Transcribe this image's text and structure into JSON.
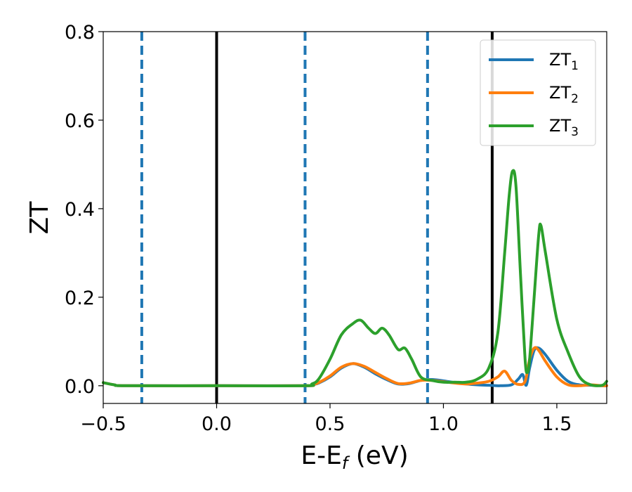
{
  "chart_data": {
    "type": "line",
    "xlabel": "E-E",
    "xlabel_sub": "f",
    "xlabel_unit": " (eV)",
    "ylabel": "ZT",
    "xlim": [
      -0.5,
      1.72
    ],
    "ylim": [
      -0.04,
      0.8
    ],
    "x_ticks": [
      -0.5,
      0.0,
      0.5,
      1.0,
      1.5
    ],
    "x_tick_labels": [
      "−0.5",
      "0.0",
      "0.5",
      "1.0",
      "1.5"
    ],
    "y_ticks": [
      0.0,
      0.2,
      0.4,
      0.6,
      0.8
    ],
    "y_tick_labels": [
      "0.0",
      "0.2",
      "0.4",
      "0.6",
      "0.8"
    ],
    "grid": false,
    "legend_position": "top-right",
    "vertical_lines": [
      {
        "x": -0.33,
        "style": "dashed",
        "color": "#1f77b4"
      },
      {
        "x": 0.0,
        "style": "solid",
        "color": "#000000"
      },
      {
        "x": 0.39,
        "style": "dashed",
        "color": "#1f77b4"
      },
      {
        "x": 0.93,
        "style": "dashed",
        "color": "#1f77b4"
      },
      {
        "x": 1.215,
        "style": "solid",
        "color": "#000000"
      }
    ],
    "series": [
      {
        "name": "ZT",
        "sub": "1",
        "color": "#1f77b4",
        "x": [
          -0.5,
          -0.45,
          -0.4,
          0.0,
          0.39,
          0.42,
          0.45,
          0.5,
          0.55,
          0.6,
          0.65,
          0.7,
          0.75,
          0.8,
          0.85,
          0.9,
          0.95,
          1.0,
          1.05,
          1.1,
          1.15,
          1.2,
          1.25,
          1.3,
          1.33,
          1.35,
          1.365,
          1.38,
          1.4,
          1.42,
          1.45,
          1.5,
          1.55,
          1.6,
          1.65,
          1.7,
          1.72
        ],
        "y": [
          0.007,
          0.002,
          0.0,
          0.0,
          0.0,
          0.002,
          0.006,
          0.02,
          0.04,
          0.05,
          0.042,
          0.027,
          0.014,
          0.004,
          0.005,
          0.012,
          0.014,
          0.011,
          0.007,
          0.004,
          0.002,
          0.001,
          0.0,
          0.002,
          0.015,
          0.025,
          0.001,
          0.04,
          0.08,
          0.085,
          0.07,
          0.035,
          0.01,
          0.002,
          0.001,
          0.0,
          0.0
        ]
      },
      {
        "name": "ZT",
        "sub": "2",
        "color": "#ff7f0e",
        "x": [
          -0.5,
          -0.45,
          -0.4,
          0.0,
          0.39,
          0.42,
          0.45,
          0.5,
          0.55,
          0.6,
          0.65,
          0.7,
          0.75,
          0.8,
          0.85,
          0.9,
          0.95,
          1.0,
          1.05,
          1.1,
          1.15,
          1.2,
          1.24,
          1.27,
          1.3,
          1.33,
          1.36,
          1.38,
          1.4,
          1.42,
          1.45,
          1.5,
          1.55,
          1.6,
          1.65,
          1.7,
          1.72
        ],
        "y": [
          0.007,
          0.002,
          0.0,
          0.0,
          0.0,
          0.002,
          0.007,
          0.022,
          0.042,
          0.05,
          0.044,
          0.03,
          0.016,
          0.005,
          0.006,
          0.012,
          0.012,
          0.009,
          0.006,
          0.004,
          0.006,
          0.01,
          0.02,
          0.033,
          0.012,
          0.003,
          0.01,
          0.06,
          0.085,
          0.08,
          0.055,
          0.02,
          0.002,
          0.0,
          0.002,
          0.0,
          0.0
        ]
      },
      {
        "name": "ZT",
        "sub": "3",
        "color": "#2ca02c",
        "x": [
          -0.5,
          -0.45,
          -0.4,
          0.0,
          0.39,
          0.42,
          0.45,
          0.5,
          0.55,
          0.6,
          0.635,
          0.67,
          0.7,
          0.73,
          0.76,
          0.8,
          0.83,
          0.86,
          0.9,
          0.95,
          1.0,
          1.05,
          1.1,
          1.15,
          1.2,
          1.24,
          1.27,
          1.29,
          1.305,
          1.32,
          1.34,
          1.36,
          1.37,
          1.38,
          1.4,
          1.42,
          1.43,
          1.45,
          1.5,
          1.55,
          1.6,
          1.65,
          1.7,
          1.72
        ],
        "y": [
          0.007,
          0.002,
          0.0,
          0.0,
          0.0,
          0.004,
          0.015,
          0.06,
          0.115,
          0.14,
          0.148,
          0.13,
          0.118,
          0.13,
          0.115,
          0.082,
          0.085,
          0.06,
          0.02,
          0.012,
          0.008,
          0.008,
          0.008,
          0.015,
          0.04,
          0.12,
          0.3,
          0.43,
          0.485,
          0.45,
          0.25,
          0.06,
          0.03,
          0.06,
          0.2,
          0.34,
          0.362,
          0.3,
          0.15,
          0.075,
          0.02,
          0.002,
          0.001,
          0.01
        ]
      }
    ]
  }
}
